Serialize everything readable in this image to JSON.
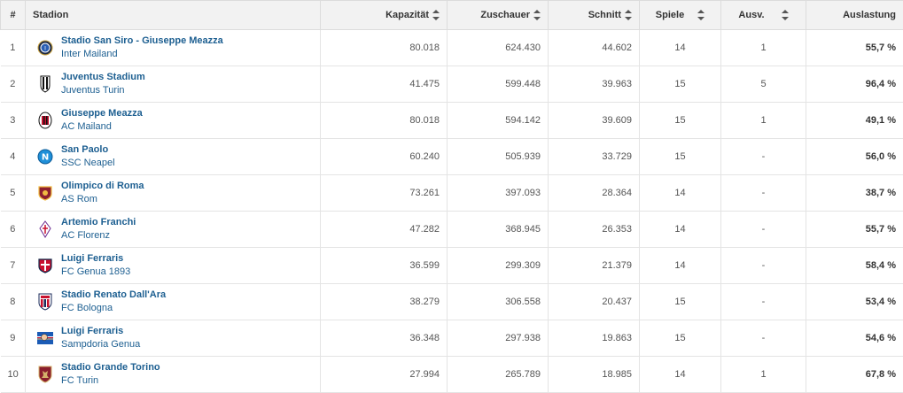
{
  "headers": {
    "rank": "#",
    "stadium": "Stadion",
    "capacity": "Kapazität",
    "spectators": "Zuschauer",
    "average": "Schnitt",
    "games": "Spiele",
    "sold_out": "Ausv.",
    "utilization": "Auslastung"
  },
  "rows": [
    {
      "rank": "1",
      "stadium": "Stadio San Siro - Giuseppe Meazza",
      "club": "Inter Mailand",
      "capacity": "80.018",
      "spectators": "624.430",
      "average": "44.602",
      "games": "14",
      "sold_out": "1",
      "utilization": "55,7 %",
      "crest": "inter-crest-icon"
    },
    {
      "rank": "2",
      "stadium": "Juventus Stadium",
      "club": "Juventus Turin",
      "capacity": "41.475",
      "spectators": "599.448",
      "average": "39.963",
      "games": "15",
      "sold_out": "5",
      "utilization": "96,4 %",
      "crest": "juventus-crest-icon"
    },
    {
      "rank": "3",
      "stadium": "Giuseppe Meazza",
      "club": "AC Mailand",
      "capacity": "80.018",
      "spectators": "594.142",
      "average": "39.609",
      "games": "15",
      "sold_out": "1",
      "utilization": "49,1 %",
      "crest": "milan-crest-icon"
    },
    {
      "rank": "4",
      "stadium": "San Paolo",
      "club": "SSC Neapel",
      "capacity": "60.240",
      "spectators": "505.939",
      "average": "33.729",
      "games": "15",
      "sold_out": "-",
      "utilization": "56,0 %",
      "crest": "napoli-crest-icon"
    },
    {
      "rank": "5",
      "stadium": "Olimpico di Roma",
      "club": "AS Rom",
      "capacity": "73.261",
      "spectators": "397.093",
      "average": "28.364",
      "games": "14",
      "sold_out": "-",
      "utilization": "38,7 %",
      "crest": "roma-crest-icon"
    },
    {
      "rank": "6",
      "stadium": "Artemio Franchi",
      "club": "AC Florenz",
      "capacity": "47.282",
      "spectators": "368.945",
      "average": "26.353",
      "games": "14",
      "sold_out": "-",
      "utilization": "55,7 %",
      "crest": "fiorentina-crest-icon"
    },
    {
      "rank": "7",
      "stadium": "Luigi Ferraris",
      "club": "FC Genua 1893",
      "capacity": "36.599",
      "spectators": "299.309",
      "average": "21.379",
      "games": "14",
      "sold_out": "-",
      "utilization": "58,4 %",
      "crest": "genoa-crest-icon"
    },
    {
      "rank": "8",
      "stadium": "Stadio Renato Dall'Ara",
      "club": "FC Bologna",
      "capacity": "38.279",
      "spectators": "306.558",
      "average": "20.437",
      "games": "15",
      "sold_out": "-",
      "utilization": "53,4 %",
      "crest": "bologna-crest-icon"
    },
    {
      "rank": "9",
      "stadium": "Luigi Ferraris",
      "club": "Sampdoria Genua",
      "capacity": "36.348",
      "spectators": "297.938",
      "average": "19.863",
      "games": "15",
      "sold_out": "-",
      "utilization": "54,6 %",
      "crest": "sampdoria-crest-icon"
    },
    {
      "rank": "10",
      "stadium": "Stadio Grande Torino",
      "club": "FC Turin",
      "capacity": "27.994",
      "spectators": "265.789",
      "average": "18.985",
      "games": "14",
      "sold_out": "1",
      "utilization": "67,8 %",
      "crest": "torino-crest-icon"
    }
  ]
}
